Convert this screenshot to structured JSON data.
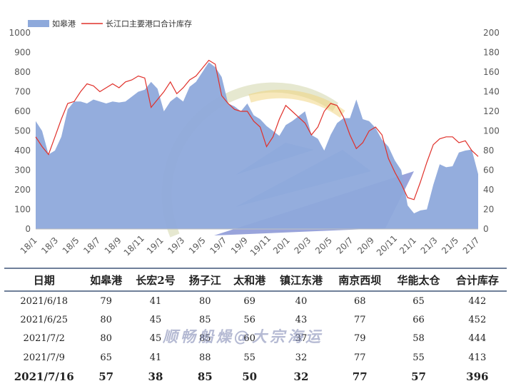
{
  "chart_data": {
    "type": "area",
    "x_tick_labels": [
      "18/1",
      "18/3",
      "18/5",
      "18/7",
      "18/9",
      "18/11",
      "19/1",
      "19/3",
      "19/5",
      "19/7",
      "19/9",
      "19/11",
      "20/1",
      "20/3",
      "20/5",
      "20/7",
      "20/9",
      "20/11",
      "21/1",
      "21/3",
      "21/5",
      "21/7"
    ],
    "y_left_ticks": [
      0,
      100,
      200,
      300,
      400,
      500,
      600,
      700,
      800,
      900,
      1000
    ],
    "y_right_ticks": [
      0,
      20,
      40,
      60,
      80,
      100,
      120,
      140,
      160,
      180,
      200
    ],
    "ylim_left": [
      0,
      1000
    ],
    "ylim_right": [
      0,
      200
    ],
    "legend_position": "top-left",
    "series": [
      {
        "name": "如皋港",
        "kind": "area",
        "axis": "right",
        "color": "#8ea9db",
        "values": [
          110,
          100,
          76,
          80,
          94,
          122,
          130,
          130,
          128,
          132,
          130,
          128,
          130,
          129,
          130,
          135,
          140,
          142,
          150,
          143,
          120,
          130,
          135,
          130,
          145,
          150,
          160,
          170,
          165,
          155,
          128,
          125,
          120,
          128,
          116,
          112,
          105,
          100,
          95,
          106,
          110,
          115,
          120,
          96,
          92,
          80,
          96,
          108,
          113,
          113,
          132,
          112,
          110,
          103,
          91,
          84,
          70,
          60,
          24,
          16,
          19,
          20,
          45,
          66,
          63,
          64,
          78,
          80,
          81,
          56
        ]
      },
      {
        "name": "长江口主要港口合计库存",
        "kind": "line",
        "axis": "left",
        "color": "#e0302a",
        "values": [
          470,
          420,
          380,
          470,
          560,
          640,
          650,
          700,
          740,
          730,
          700,
          720,
          740,
          720,
          750,
          760,
          780,
          770,
          620,
          660,
          700,
          750,
          690,
          720,
          760,
          780,
          820,
          860,
          840,
          680,
          640,
          610,
          600,
          600,
          550,
          520,
          420,
          470,
          560,
          630,
          600,
          570,
          540,
          480,
          520,
          600,
          640,
          630,
          570,
          480,
          410,
          440,
          500,
          520,
          480,
          360,
          290,
          230,
          160,
          150,
          240,
          340,
          430,
          460,
          470,
          470,
          440,
          450,
          400,
          370
        ]
      }
    ]
  },
  "watermark": "顺畅船燥@大宗海运",
  "table": {
    "headers": [
      "日期",
      "如皋港",
      "长宏2号",
      "扬子江",
      "太和港",
      "镇江东港",
      "南京西坝",
      "华能太仓",
      "合计库存"
    ],
    "rows": [
      [
        "2021/6/18",
        "79",
        "41",
        "80",
        "69",
        "40",
        "68",
        "65",
        "442"
      ],
      [
        "2021/6/25",
        "80",
        "45",
        "85",
        "56",
        "43",
        "77",
        "66",
        "452"
      ],
      [
        "2021/7/2",
        "80",
        "45",
        "85",
        "60",
        "37",
        "79",
        "58",
        "444"
      ],
      [
        "2021/7/9",
        "65",
        "41",
        "88",
        "55",
        "32",
        "77",
        "55",
        "413"
      ],
      [
        "2021/7/16",
        "57",
        "38",
        "85",
        "50",
        "32",
        "77",
        "57",
        "396"
      ]
    ]
  }
}
